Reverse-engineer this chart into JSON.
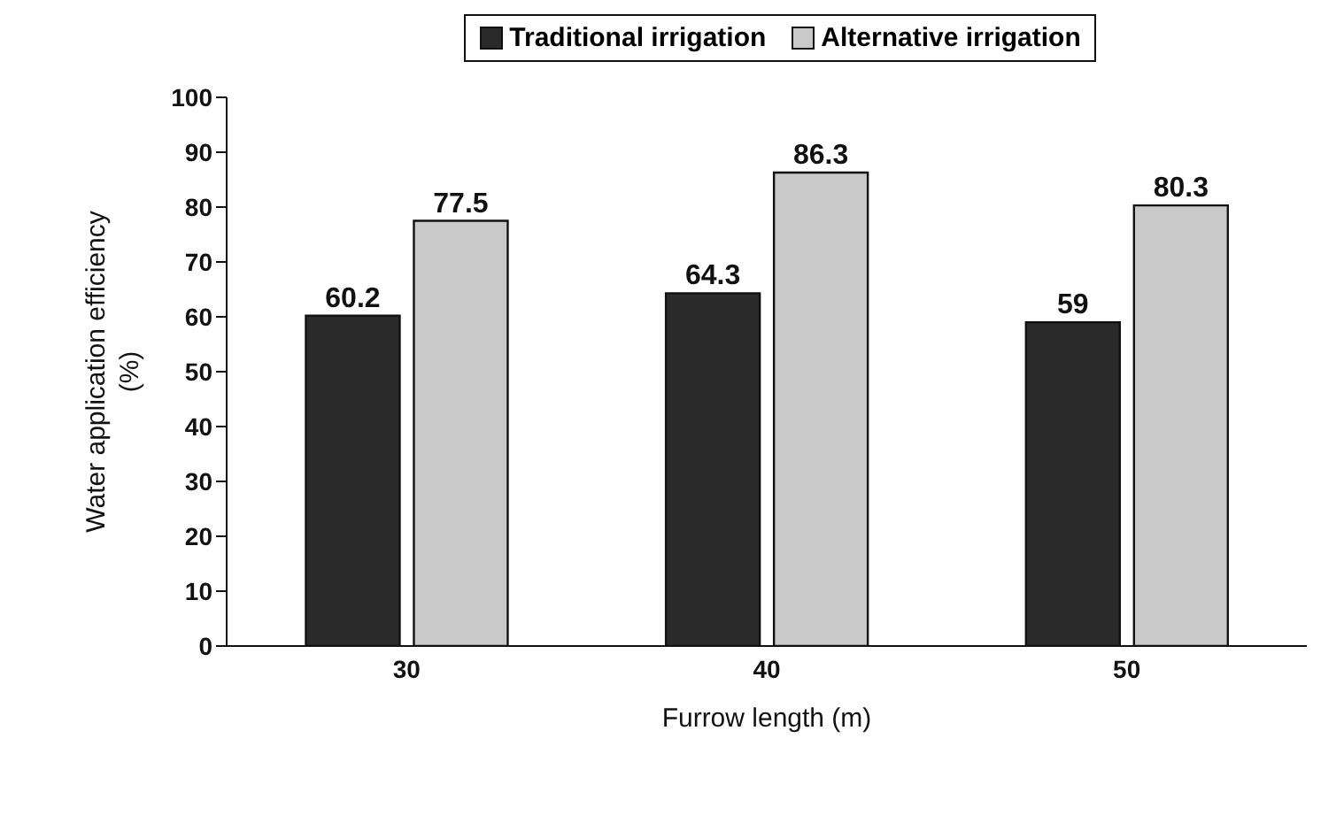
{
  "chart_data": {
    "type": "bar",
    "xlabel": "Furrow length (m)",
    "ylabel": "Water application efficiency (%)",
    "categories": [
      "30",
      "40",
      "50"
    ],
    "series": [
      {
        "name": "Traditional irrigation",
        "color": "#2b2b2b",
        "values": [
          60.2,
          64.3,
          59
        ]
      },
      {
        "name": "Alternative irrigation",
        "color": "#c9c9c9",
        "values": [
          77.5,
          86.3,
          80.3
        ]
      }
    ],
    "ylim": [
      0,
      100
    ],
    "yticks": [
      0,
      10,
      20,
      30,
      40,
      50,
      60,
      70,
      80,
      90,
      100
    ],
    "grid": false,
    "legend": "top",
    "data_labels": true
  }
}
